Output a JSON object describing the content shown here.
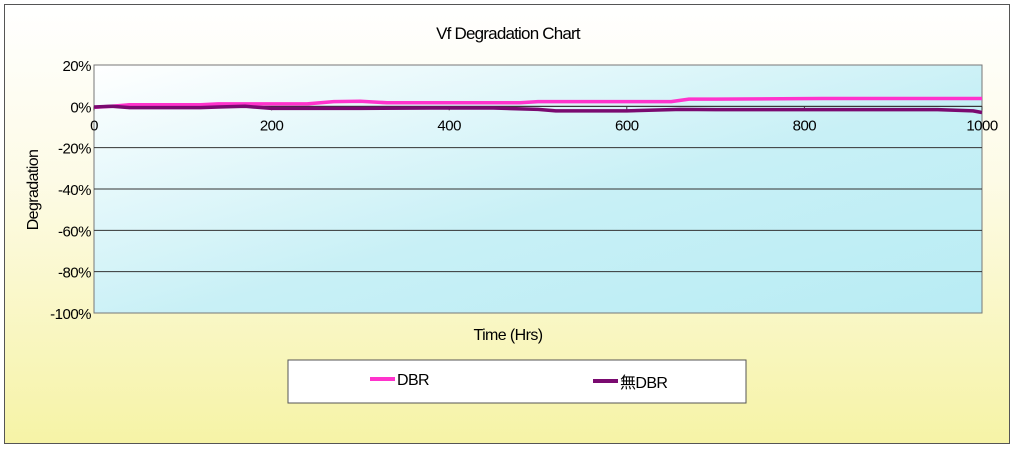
{
  "chart_data": {
    "type": "line",
    "title": "Vf Degradation Chart",
    "xlabel": "Time (Hrs)",
    "ylabel": "Degradation",
    "xlim": [
      0,
      1000
    ],
    "ylim": [
      -100,
      20
    ],
    "x_ticks": [
      0,
      200,
      400,
      600,
      800,
      1000
    ],
    "x_tick_labels": [
      "0",
      "200",
      "400",
      "600",
      "800",
      "1000"
    ],
    "y_ticks": [
      20,
      0,
      -20,
      -40,
      -60,
      -80,
      -100
    ],
    "y_tick_labels": [
      "20%",
      "0%",
      "-20%",
      "-40%",
      "-60%",
      "-80%",
      "-100%"
    ],
    "grid": true,
    "legend_position": "bottom",
    "plot_background": "#c8f0f6",
    "frame_background": "#f6f3a6",
    "series": [
      {
        "name": "DBR",
        "color": "#ff33cc",
        "x": [
          0,
          20,
          40,
          120,
          140,
          240,
          270,
          300,
          330,
          480,
          500,
          650,
          670,
          700,
          820,
          1000
        ],
        "values": [
          -0.5,
          0,
          0.8,
          0.8,
          1.2,
          1.2,
          2.3,
          2.5,
          1.7,
          1.7,
          2.3,
          2.3,
          3.5,
          3.5,
          3.8,
          3.8
        ]
      },
      {
        "name": "無DBR",
        "color": "#7a0a70",
        "x": [
          0,
          20,
          40,
          120,
          140,
          170,
          200,
          300,
          380,
          450,
          500,
          520,
          600,
          660,
          700,
          800,
          950,
          990,
          1000
        ],
        "values": [
          -0.3,
          0,
          -0.6,
          -0.6,
          -0.3,
          0,
          -1.0,
          -1.0,
          -0.8,
          -0.8,
          -1.5,
          -2.2,
          -2.2,
          -1.5,
          -1.6,
          -1.6,
          -1.6,
          -2.2,
          -3.0
        ]
      }
    ]
  }
}
